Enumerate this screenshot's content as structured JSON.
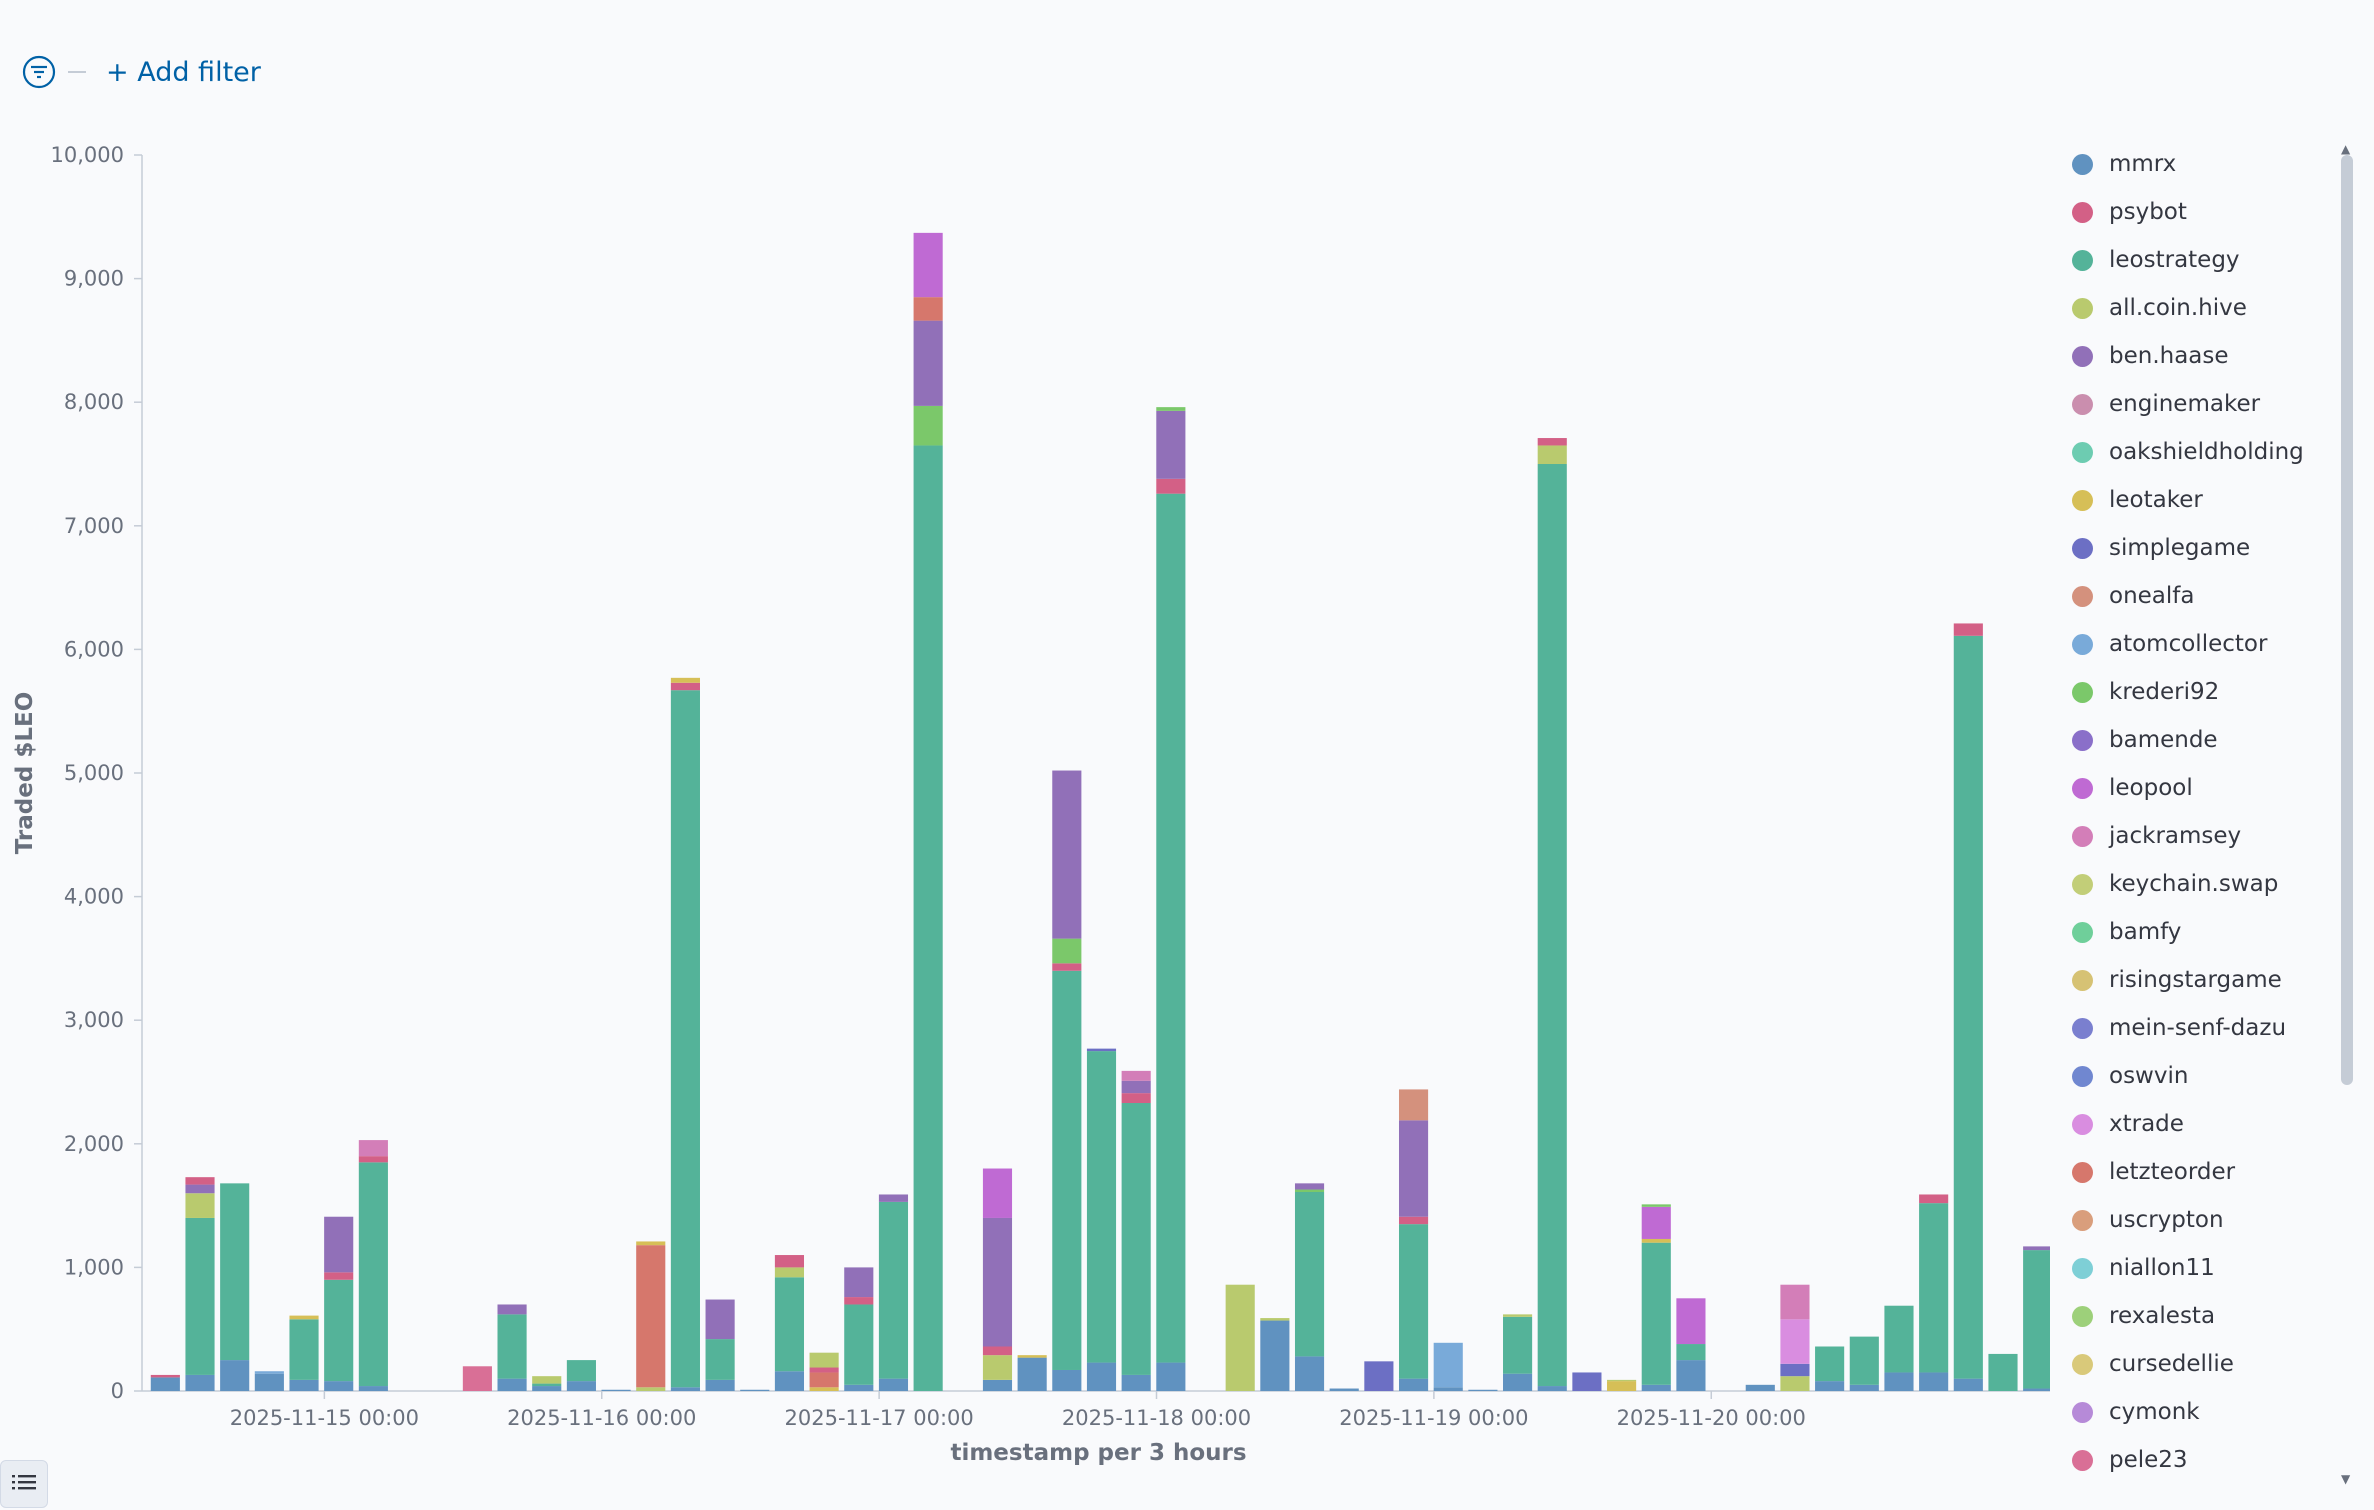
{
  "filter_bar": {
    "add_filter_label": "+ Add filter"
  },
  "legend": {
    "items": [
      {
        "name": "mmrx",
        "color": "#6092c0"
      },
      {
        "name": "psybot",
        "color": "#d36086"
      },
      {
        "name": "leostrategy",
        "color": "#54b399"
      },
      {
        "name": "all.coin.hive",
        "color": "#b9ca6e"
      },
      {
        "name": "ben.haase",
        "color": "#9170b8"
      },
      {
        "name": "enginemaker",
        "color": "#ca8eae"
      },
      {
        "name": "oakshieldholding",
        "color": "#6dccb1"
      },
      {
        "name": "leotaker",
        "color": "#d6bf57"
      },
      {
        "name": "simplegame",
        "color": "#6c6fc4"
      },
      {
        "name": "onealfa",
        "color": "#d4917d"
      },
      {
        "name": "atomcollector",
        "color": "#79aad9"
      },
      {
        "name": "krederi92",
        "color": "#7bc86a"
      },
      {
        "name": "bamende",
        "color": "#8a6fc9"
      },
      {
        "name": "leopool",
        "color": "#bf6ad3"
      },
      {
        "name": "jackramsey",
        "color": "#d37eb8"
      },
      {
        "name": "keychain.swap",
        "color": "#c2ce78"
      },
      {
        "name": "bamfy",
        "color": "#6fcf9a"
      },
      {
        "name": "risingstargame",
        "color": "#d6c274"
      },
      {
        "name": "mein-senf-dazu",
        "color": "#7a7fcf"
      },
      {
        "name": "oswvin",
        "color": "#7087d0"
      },
      {
        "name": "xtrade",
        "color": "#d98de0"
      },
      {
        "name": "letzteorder",
        "color": "#d6776c"
      },
      {
        "name": "uscrypton",
        "color": "#d99e7c"
      },
      {
        "name": "niallon11",
        "color": "#7ecfd6"
      },
      {
        "name": "rexalesta",
        "color": "#9dd07a"
      },
      {
        "name": "cursedellie",
        "color": "#d9c97a"
      },
      {
        "name": "cymonk",
        "color": "#b68ad8"
      },
      {
        "name": "pele23",
        "color": "#d96f96"
      }
    ]
  },
  "chart_data": {
    "type": "bar",
    "stacked": true,
    "xlabel": "timestamp per 3 hours",
    "ylabel": "Traded $LEO",
    "ylim": [
      0,
      10000
    ],
    "yticks": [
      "0",
      "1,000",
      "2,000",
      "3,000",
      "4,000",
      "5,000",
      "6,000",
      "7,000",
      "8,000",
      "9,000",
      "10,000"
    ],
    "xticks": [
      {
        "label": "2025-11-15 00:00",
        "index": 5
      },
      {
        "label": "2025-11-16 00:00",
        "index": 13
      },
      {
        "label": "2025-11-17 00:00",
        "index": 21
      },
      {
        "label": "2025-11-18 00:00",
        "index": 29
      },
      {
        "label": "2025-11-19 00:00",
        "index": 37
      },
      {
        "label": "2025-11-20 00:00",
        "index": 45
      }
    ],
    "grid": false,
    "legend_position": "right",
    "bins": [
      [
        [
          "mmrx",
          110
        ],
        [
          "psybot",
          20
        ]
      ],
      [
        [
          "mmrx",
          130
        ],
        [
          "leostrategy",
          1270
        ],
        [
          "all.coin.hive",
          200
        ],
        [
          "ben.haase",
          70
        ],
        [
          "psybot",
          60
        ]
      ],
      [
        [
          "mmrx",
          250
        ],
        [
          "leostrategy",
          1430
        ]
      ],
      [
        [
          "mmrx",
          140
        ],
        [
          "atomcollector",
          20
        ]
      ],
      [
        [
          "mmrx",
          90
        ],
        [
          "leostrategy",
          490
        ],
        [
          "leotaker",
          30
        ]
      ],
      [
        [
          "mmrx",
          80
        ],
        [
          "leostrategy",
          820
        ],
        [
          "psybot",
          60
        ],
        [
          "ben.haase",
          450
        ]
      ],
      [
        [
          "mmrx",
          40
        ],
        [
          "leostrategy",
          1810
        ],
        [
          "psybot",
          50
        ],
        [
          "jackramsey",
          130
        ]
      ],
      [],
      [],
      [
        [
          "pele23",
          200
        ]
      ],
      [
        [
          "mmrx",
          100
        ],
        [
          "leostrategy",
          520
        ],
        [
          "ben.haase",
          80
        ]
      ],
      [
        [
          "mmrx",
          40
        ],
        [
          "leostrategy",
          20
        ],
        [
          "all.coin.hive",
          60
        ]
      ],
      [
        [
          "mmrx",
          80
        ],
        [
          "leostrategy",
          170
        ]
      ],
      [
        [
          "mmrx",
          10
        ]
      ],
      [
        [
          "all.coin.hive",
          30
        ],
        [
          "letzteorder",
          1150
        ],
        [
          "leotaker",
          30
        ]
      ],
      [
        [
          "mmrx",
          30
        ],
        [
          "leostrategy",
          5640
        ],
        [
          "psybot",
          60
        ],
        [
          "leotaker",
          40
        ]
      ],
      [
        [
          "mmrx",
          90
        ],
        [
          "leostrategy",
          330
        ],
        [
          "ben.haase",
          320
        ]
      ],
      [
        [
          "mmrx",
          10
        ]
      ],
      [
        [
          "mmrx",
          160
        ],
        [
          "leostrategy",
          760
        ],
        [
          "all.coin.hive",
          80
        ],
        [
          "psybot",
          100
        ]
      ],
      [
        [
          "leotaker",
          30
        ],
        [
          "letzteorder",
          120
        ],
        [
          "psybot",
          40
        ],
        [
          "all.coin.hive",
          120
        ]
      ],
      [
        [
          "mmrx",
          50
        ],
        [
          "leostrategy",
          650
        ],
        [
          "psybot",
          60
        ],
        [
          "ben.haase",
          240
        ]
      ],
      [
        [
          "mmrx",
          100
        ],
        [
          "leostrategy",
          1430
        ],
        [
          "ben.haase",
          60
        ]
      ],
      [
        [
          "leostrategy",
          7650
        ],
        [
          "krederi92",
          320
        ],
        [
          "ben.haase",
          690
        ],
        [
          "letzteorder",
          190
        ],
        [
          "leopool",
          520
        ]
      ],
      [],
      [
        [
          "mmrx",
          90
        ],
        [
          "all.coin.hive",
          200
        ],
        [
          "psybot",
          70
        ],
        [
          "ben.haase",
          1040
        ],
        [
          "leopool",
          400
        ]
      ],
      [
        [
          "mmrx",
          270
        ],
        [
          "leotaker",
          20
        ]
      ],
      [
        [
          "mmrx",
          170
        ],
        [
          "leostrategy",
          3230
        ],
        [
          "psybot",
          60
        ],
        [
          "krederi92",
          200
        ],
        [
          "ben.haase",
          1360
        ]
      ],
      [
        [
          "mmrx",
          230
        ],
        [
          "leostrategy",
          2520
        ],
        [
          "simplegame",
          20
        ]
      ],
      [
        [
          "mmrx",
          130
        ],
        [
          "leostrategy",
          2200
        ],
        [
          "psybot",
          80
        ],
        [
          "ben.haase",
          100
        ],
        [
          "jackramsey",
          80
        ]
      ],
      [
        [
          "mmrx",
          230
        ],
        [
          "leostrategy",
          7030
        ],
        [
          "psybot",
          120
        ],
        [
          "ben.haase",
          550
        ],
        [
          "krederi92",
          30
        ]
      ],
      [],
      [
        [
          "all.coin.hive",
          860
        ]
      ],
      [
        [
          "mmrx",
          570
        ],
        [
          "all.coin.hive",
          20
        ]
      ],
      [
        [
          "mmrx",
          280
        ],
        [
          "leostrategy",
          1330
        ],
        [
          "krederi92",
          20
        ],
        [
          "ben.haase",
          50
        ]
      ],
      [
        [
          "mmrx",
          20
        ]
      ],
      [
        [
          "simplegame",
          240
        ]
      ],
      [
        [
          "mmrx",
          100
        ],
        [
          "leostrategy",
          1250
        ],
        [
          "psybot",
          60
        ],
        [
          "ben.haase",
          780
        ],
        [
          "onealfa",
          250
        ]
      ],
      [
        [
          "mmrx",
          30
        ],
        [
          "atomcollector",
          360
        ]
      ],
      [
        [
          "mmrx",
          10
        ]
      ],
      [
        [
          "mmrx",
          140
        ],
        [
          "leostrategy",
          460
        ],
        [
          "all.coin.hive",
          20
        ]
      ],
      [
        [
          "mmrx",
          40
        ],
        [
          "leostrategy",
          7460
        ],
        [
          "all.coin.hive",
          150
        ],
        [
          "psybot",
          60
        ]
      ],
      [
        [
          "simplegame",
          150
        ]
      ],
      [
        [
          "leotaker",
          80
        ],
        [
          "all.coin.hive",
          10
        ]
      ],
      [
        [
          "mmrx",
          50
        ],
        [
          "leostrategy",
          1150
        ],
        [
          "leotaker",
          30
        ],
        [
          "leopool",
          260
        ],
        [
          "krederi92",
          20
        ]
      ],
      [
        [
          "mmrx",
          250
        ],
        [
          "leostrategy",
          130
        ],
        [
          "leopool",
          370
        ]
      ],
      [],
      [
        [
          "mmrx",
          50
        ]
      ],
      [
        [
          "all.coin.hive",
          120
        ],
        [
          "simplegame",
          100
        ],
        [
          "xtrade",
          360
        ],
        [
          "jackramsey",
          280
        ]
      ],
      [
        [
          "mmrx",
          80
        ],
        [
          "leostrategy",
          280
        ]
      ],
      [
        [
          "mmrx",
          50
        ],
        [
          "leostrategy",
          390
        ]
      ],
      [
        [
          "mmrx",
          150
        ],
        [
          "leostrategy",
          540
        ]
      ],
      [
        [
          "mmrx",
          150
        ],
        [
          "leostrategy",
          1370
        ],
        [
          "psybot",
          70
        ]
      ],
      [
        [
          "mmrx",
          100
        ],
        [
          "leostrategy",
          6010
        ],
        [
          "psybot",
          100
        ]
      ],
      [
        [
          "leostrategy",
          300
        ]
      ],
      [
        [
          "mmrx",
          20
        ],
        [
          "leostrategy",
          1120
        ],
        [
          "ben.haase",
          30
        ]
      ]
    ]
  }
}
